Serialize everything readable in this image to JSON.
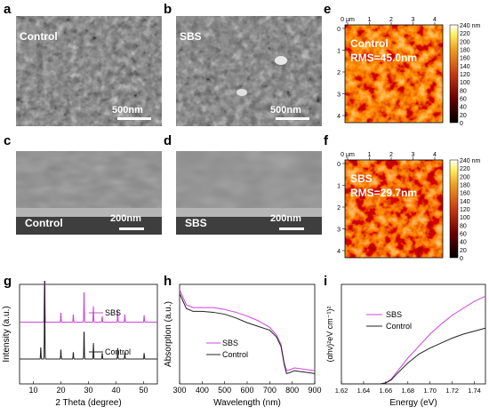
{
  "panels": {
    "a": {
      "letter": "a",
      "label": "Control",
      "scale": "500nm"
    },
    "b": {
      "letter": "b",
      "label": "SBS",
      "scale": "500nm"
    },
    "c": {
      "letter": "c",
      "label": "Control",
      "scale": "200nm"
    },
    "d": {
      "letter": "d",
      "label": "SBS",
      "scale": "200nm"
    },
    "e": {
      "letter": "e",
      "label": "Control",
      "rms": "RMS=45.0nm"
    },
    "f": {
      "letter": "f",
      "label": "SBS",
      "rms": "RMS=29.7nm"
    },
    "g": {
      "letter": "g"
    },
    "h": {
      "letter": "h"
    },
    "i": {
      "letter": "i"
    }
  },
  "afm": {
    "xticks": [
      "0 μm",
      "1",
      "2",
      "3",
      "4"
    ],
    "yticks": [
      "0",
      "1",
      "2",
      "3",
      "4"
    ],
    "colorbar_ticks": [
      "240 nm",
      "220",
      "200",
      "180",
      "160",
      "140",
      "120",
      "100",
      "80",
      "60",
      "40",
      "20",
      "0"
    ]
  },
  "colors": {
    "sbs": "#cc44dd",
    "control": "#222222"
  },
  "chart_data": [
    {
      "type": "line",
      "id": "g",
      "xlabel": "2 Theta (degree)",
      "ylabel": "Intensity (a.u.)",
      "xlim": [
        5,
        55
      ],
      "xticks": [
        "10",
        "20",
        "30",
        "40",
        "50"
      ],
      "series": [
        {
          "name": "SBS",
          "baseline": 0.62,
          "peaks": [
            [
              14.1,
              0.95
            ],
            [
              20.0,
              0.1
            ],
            [
              24.5,
              0.08
            ],
            [
              28.4,
              0.33
            ],
            [
              31.8,
              0.16
            ],
            [
              35.0,
              0.06
            ],
            [
              40.6,
              0.12
            ],
            [
              43.2,
              0.08
            ],
            [
              50.2,
              0.07
            ]
          ]
        },
        {
          "name": "Control",
          "baseline": 0.25,
          "peaks": [
            [
              12.7,
              0.12
            ],
            [
              14.1,
              0.88
            ],
            [
              20.0,
              0.1
            ],
            [
              24.5,
              0.07
            ],
            [
              28.4,
              0.3
            ],
            [
              31.8,
              0.16
            ],
            [
              35.0,
              0.06
            ],
            [
              40.6,
              0.11
            ],
            [
              43.2,
              0.07
            ],
            [
              50.2,
              0.06
            ]
          ]
        }
      ]
    },
    {
      "type": "line",
      "id": "h",
      "xlabel": "Wavelength (nm)",
      "ylabel": "Absorption (a.u.)",
      "xlim": [
        300,
        900
      ],
      "xticks": [
        "300",
        "400",
        "500",
        "600",
        "700",
        "800",
        "900"
      ],
      "series": [
        {
          "name": "SBS",
          "x": [
            300,
            330,
            360,
            400,
            450,
            500,
            550,
            600,
            650,
            700,
            730,
            750,
            765,
            775,
            790,
            810,
            840,
            870,
            900
          ],
          "y": [
            1.0,
            0.84,
            0.81,
            0.81,
            0.81,
            0.79,
            0.76,
            0.72,
            0.67,
            0.6,
            0.52,
            0.42,
            0.22,
            0.14,
            0.15,
            0.17,
            0.16,
            0.15,
            0.14
          ]
        },
        {
          "name": "Control",
          "x": [
            300,
            330,
            360,
            400,
            450,
            500,
            550,
            600,
            650,
            700,
            730,
            750,
            765,
            775,
            790,
            810,
            840,
            870,
            900
          ],
          "y": [
            0.96,
            0.8,
            0.77,
            0.77,
            0.76,
            0.74,
            0.7,
            0.65,
            0.61,
            0.57,
            0.5,
            0.4,
            0.2,
            0.11,
            0.12,
            0.14,
            0.13,
            0.12,
            0.11
          ]
        }
      ]
    },
    {
      "type": "line",
      "id": "i",
      "xlabel": "Energy (eV)",
      "ylabel": "(αhν)²eV cm⁻¹)²",
      "xlim": [
        1.62,
        1.75
      ],
      "xticks": [
        "1.62",
        "1.64",
        "1.66",
        "1.68",
        "1.70",
        "1.72",
        "1.74"
      ],
      "series": [
        {
          "name": "SBS",
          "x": [
            1.62,
            1.64,
            1.655,
            1.66,
            1.665,
            1.67,
            1.68,
            1.69,
            1.7,
            1.71,
            1.72,
            1.73,
            1.74,
            1.75
          ],
          "y": [
            0,
            0,
            0,
            0.01,
            0.05,
            0.12,
            0.26,
            0.38,
            0.5,
            0.6,
            0.69,
            0.76,
            0.83,
            0.88
          ]
        },
        {
          "name": "Control",
          "x": [
            1.62,
            1.64,
            1.655,
            1.66,
            1.665,
            1.67,
            1.68,
            1.69,
            1.7,
            1.71,
            1.72,
            1.73,
            1.74,
            1.75
          ],
          "y": [
            0,
            0,
            0,
            0.01,
            0.04,
            0.1,
            0.21,
            0.3,
            0.36,
            0.41,
            0.46,
            0.5,
            0.53,
            0.56
          ]
        }
      ]
    }
  ]
}
